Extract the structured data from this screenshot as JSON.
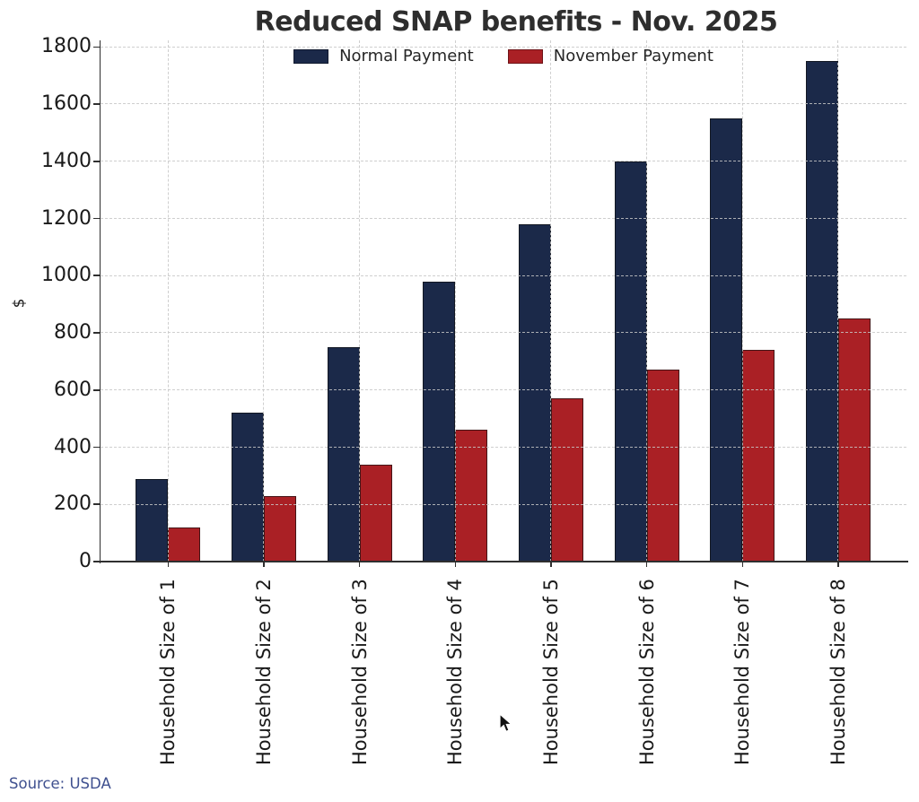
{
  "title": "Reduced SNAP benefits - Nov. 2025",
  "source_note": "Source: USDA",
  "legend": {
    "items": [
      {
        "label": "Normal Payment",
        "color": "#1b2949"
      },
      {
        "label": "November Payment",
        "color": "#aa2025"
      }
    ]
  },
  "y_axis": {
    "label": "$",
    "tick_labels": [
      "0",
      "200",
      "400",
      "600",
      "800",
      "1000",
      "1200",
      "1400",
      "1600",
      "1800"
    ]
  },
  "chart_data": {
    "type": "bar",
    "title": "Reduced SNAP benefits - Nov. 2025",
    "categories": [
      "Household Size of 1",
      "Household Size of 2",
      "Household Size of 3",
      "Household Size of 4",
      "Household Size of 5",
      "Household Size of 6",
      "Household Size of 7",
      "Household Size of 8"
    ],
    "series": [
      {
        "name": "Normal Payment",
        "color": "#1b2949",
        "values": [
          290,
          520,
          750,
          980,
          1180,
          1400,
          1550,
          1750
        ]
      },
      {
        "name": "November Payment",
        "color": "#aa2025",
        "values": [
          120,
          230,
          340,
          460,
          570,
          670,
          740,
          850
        ]
      }
    ],
    "xlabel": "",
    "ylabel": "$",
    "ylim": [
      0,
      1800
    ],
    "ytick_step": 200,
    "grid": "dashed, horizontal and vertical at category centers, drawn over bars",
    "legend_position": "top-center, no frame",
    "bar_orientation": "vertical, grouped pairs",
    "x_tick_label_rotation": -90
  }
}
